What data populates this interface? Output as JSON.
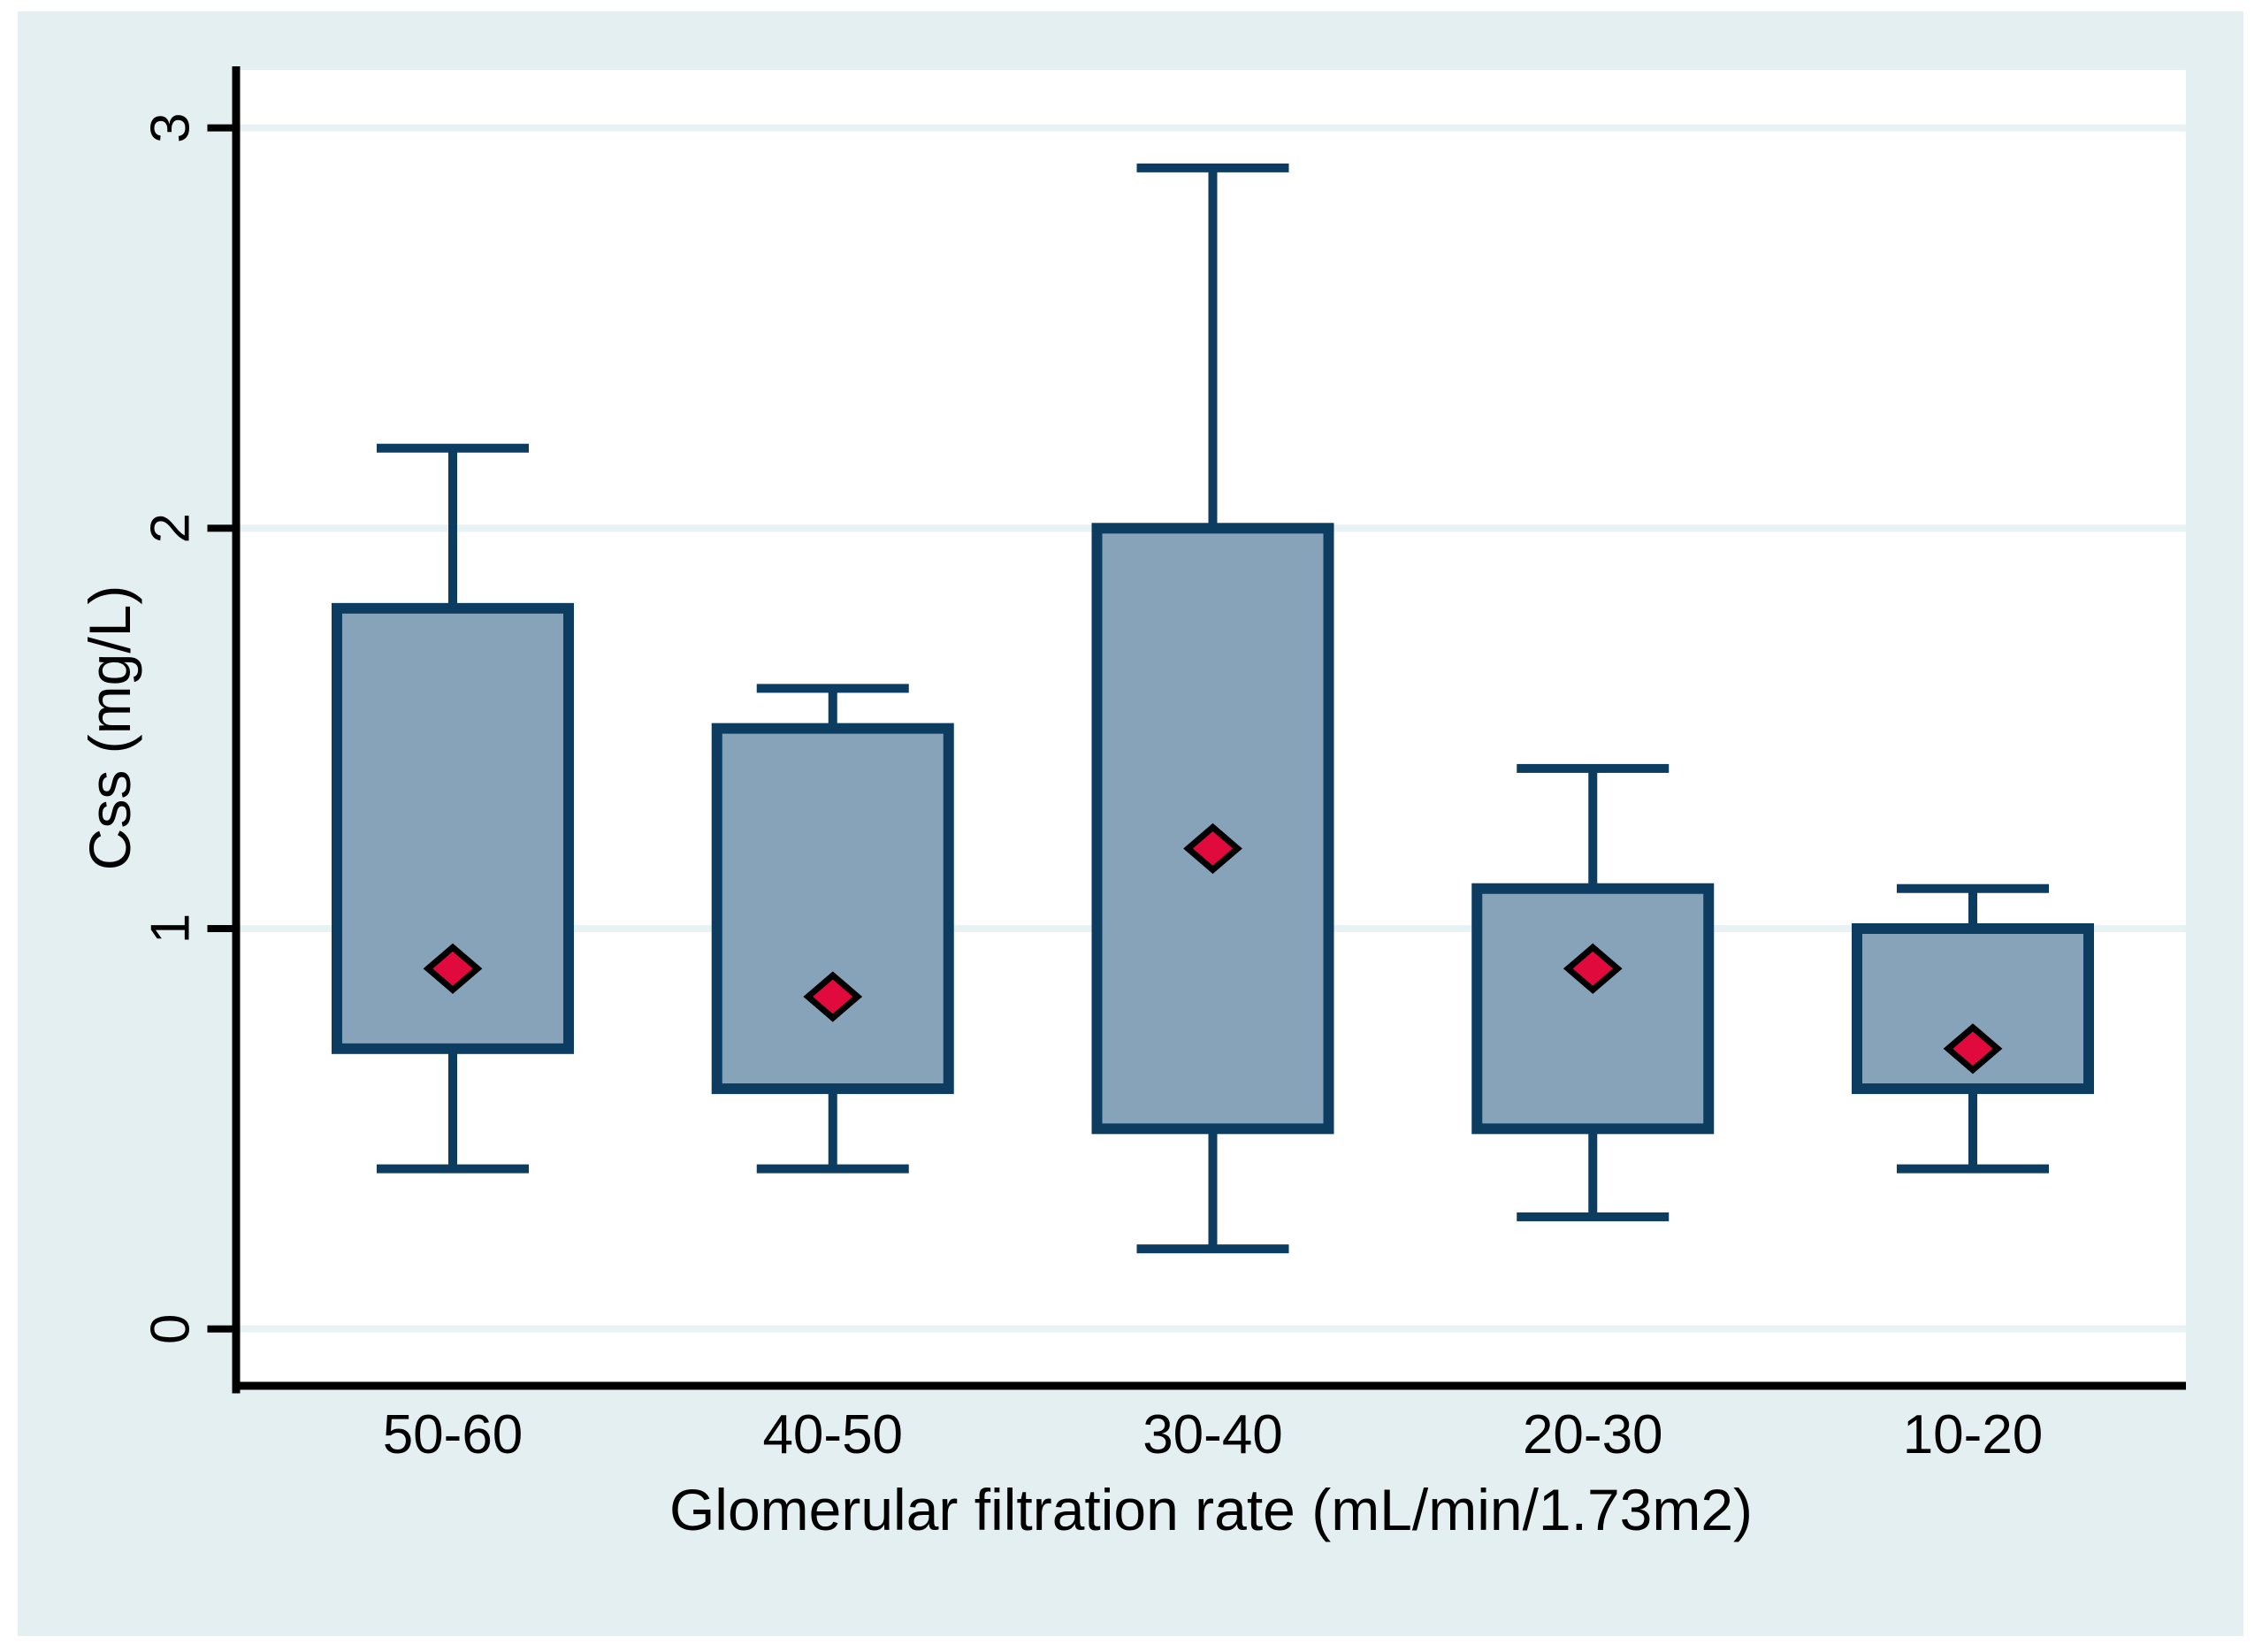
{
  "page": {
    "bg": "#ffffff"
  },
  "canvas": {
    "bg": "#e3eff1"
  },
  "chart_data": {
    "type": "box",
    "title": "",
    "xlabel": "Glomerular filtration rate (mL/min/1.73m2)",
    "ylabel": "Css (mg/L)",
    "yticks": [
      0,
      1,
      2,
      3
    ],
    "ylim": [
      -0.14,
      3.15
    ],
    "grid": "horizontal",
    "legend": "none",
    "marker_meaning": "median-diamond",
    "categories": [
      "50-60",
      "40-50",
      "30-40",
      "20-30",
      "10-20"
    ],
    "boxes": [
      {
        "category": "50-60",
        "whisker_low": 0.4,
        "q1": 0.7,
        "median_marker": 0.9,
        "q3": 1.8,
        "whisker_high": 2.2
      },
      {
        "category": "40-50",
        "whisker_low": 0.4,
        "q1": 0.6,
        "median_marker": 0.83,
        "q3": 1.5,
        "whisker_high": 1.6
      },
      {
        "category": "30-40",
        "whisker_low": 0.2,
        "q1": 0.5,
        "median_marker": 1.2,
        "q3": 2.0,
        "whisker_high": 2.9
      },
      {
        "category": "20-30",
        "whisker_low": 0.28,
        "q1": 0.5,
        "median_marker": 0.9,
        "q3": 1.1,
        "whisker_high": 1.4
      },
      {
        "category": "10-20",
        "whisker_low": 0.4,
        "q1": 0.6,
        "median_marker": 0.7,
        "q3": 1.0,
        "whisker_high": 1.1
      }
    ],
    "colors": {
      "canvas_bg": "#e3eff1",
      "plot_bg": "#ffffff",
      "gridline": "#e8f2f4",
      "box_fill": "#86a3b9",
      "box_stroke": "#0c3c60",
      "marker_fill": "#e00a3c",
      "marker_stroke": "#000000",
      "axis": "#000000"
    }
  }
}
